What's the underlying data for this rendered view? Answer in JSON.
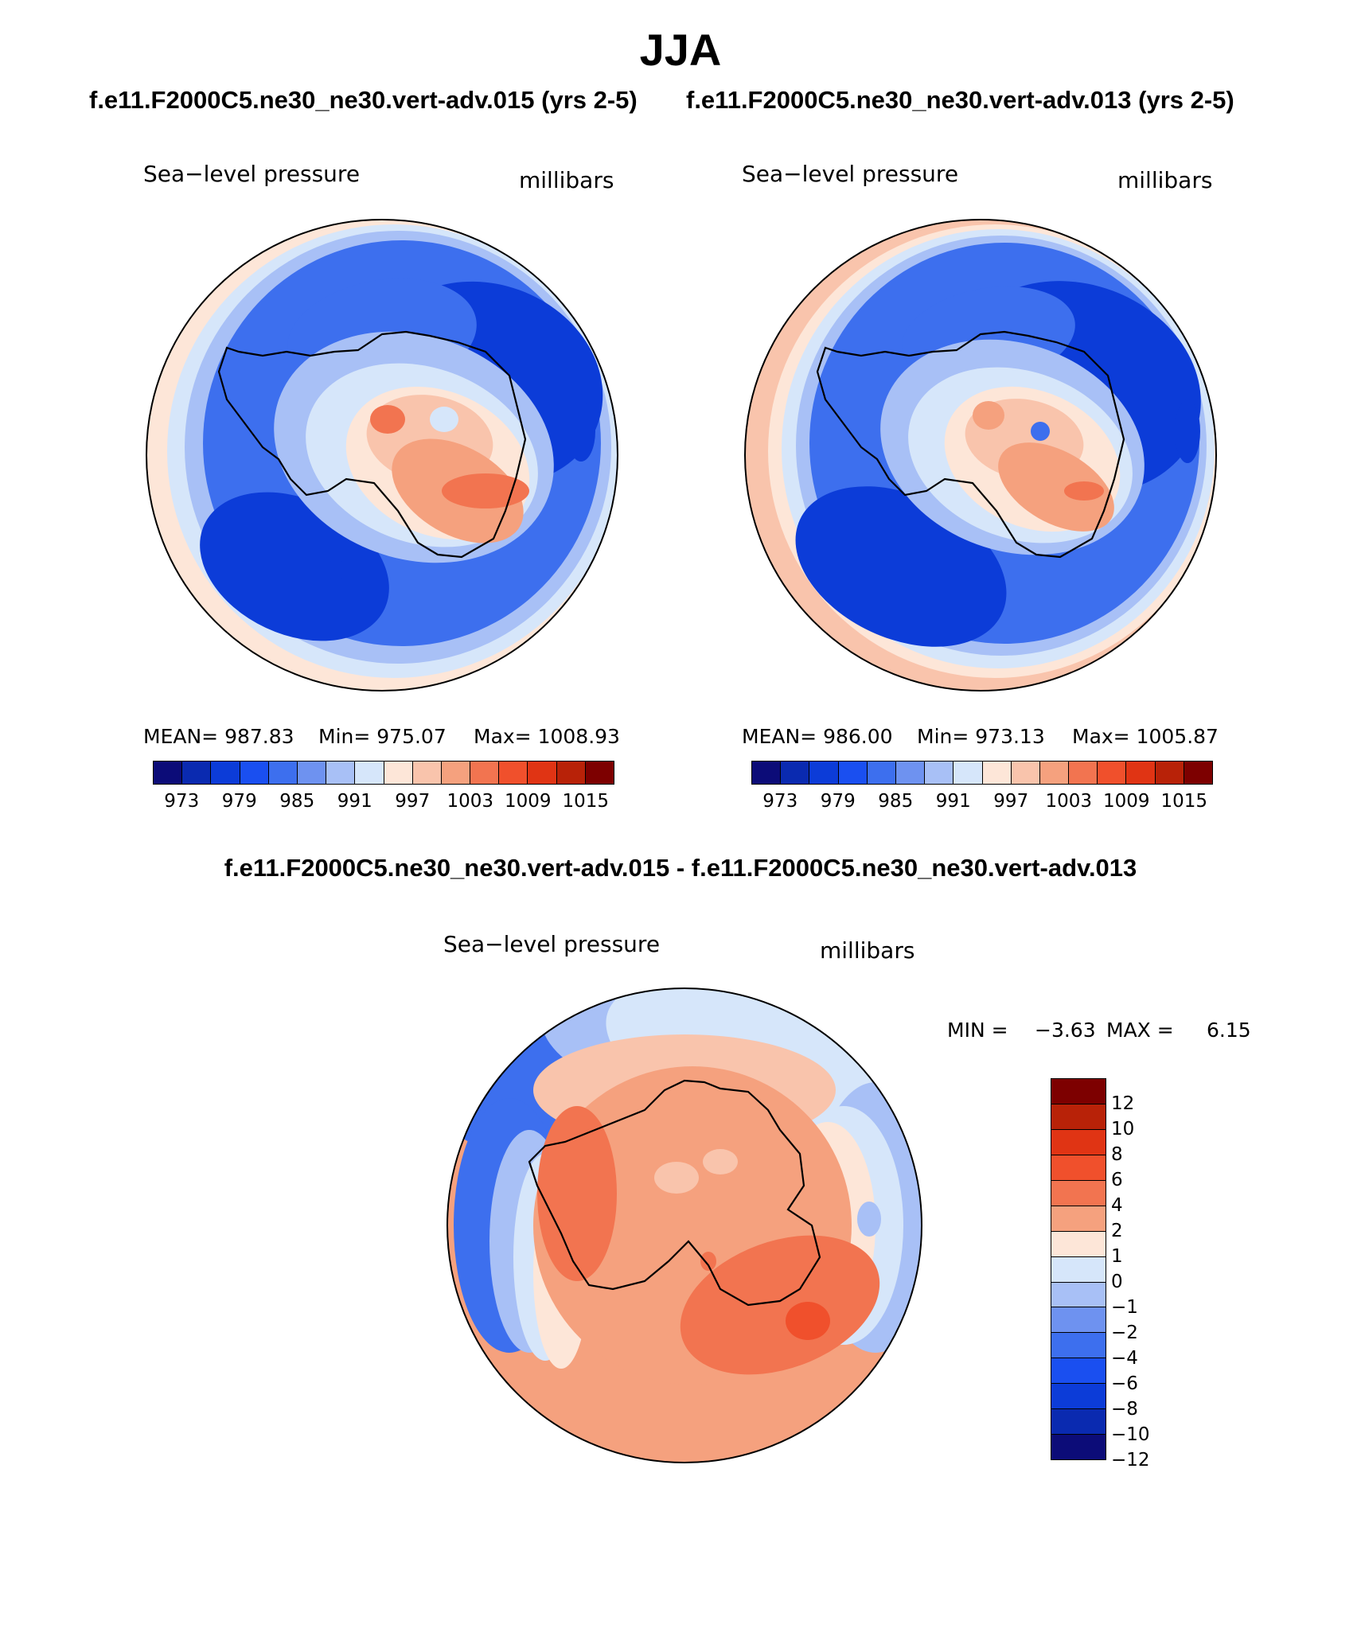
{
  "season_title": "JJA",
  "case1_title": "f.e11.F2000C5.ne30_ne30.vert-adv.015 (yrs 2-5)",
  "case2_title": "f.e11.F2000C5.ne30_ne30.vert-adv.013 (yrs 2-5)",
  "diff_title": "f.e11.F2000C5.ne30_ne30.vert-adv.015 - f.e11.F2000C5.ne30_ne30.vert-adv.013",
  "panels": [
    {
      "variable": "Sea−level pressure",
      "units": "millibars",
      "mean_label": "MEAN= 987.83",
      "min_label": "Min= 975.07",
      "max_label": "Max= 1008.93"
    },
    {
      "variable": "Sea−level pressure",
      "units": "millibars",
      "mean_label": "MEAN= 986.00",
      "min_label": "Min= 973.13",
      "max_label": "Max= 1005.87"
    }
  ],
  "diff_panel": {
    "variable": "Sea−level pressure",
    "units": "millibars",
    "min_label": "MIN =",
    "min_value": "−3.63",
    "max_label": "MAX =",
    "max_value": "6.15"
  },
  "abs_colorbar": {
    "colors": [
      "#0c0c78",
      "#0a2ab0",
      "#0c3cd8",
      "#1a4ff0",
      "#3d6fee",
      "#6e92f0",
      "#a8c0f6",
      "#d6e6fa",
      "#fde6d8",
      "#f9c4ac",
      "#f5a17e",
      "#f27450",
      "#f0502c",
      "#e03414",
      "#b82208",
      "#7d0000"
    ],
    "tick_labels": [
      "973",
      "979",
      "985",
      "991",
      "997",
      "1003",
      "1009",
      "1015"
    ]
  },
  "diff_colorbar": {
    "colors": [
      "#7d0000",
      "#b82208",
      "#e03414",
      "#f0502c",
      "#f27450",
      "#f5a17e",
      "#fde6d8",
      "#d6e6fa",
      "#a8c0f6",
      "#6e92f0",
      "#3d6fee",
      "#1a4ff0",
      "#0c3cd8",
      "#0a2ab0",
      "#0c0c78"
    ],
    "tick_labels": [
      "12",
      "10",
      "8",
      "6",
      "4",
      "2",
      "1",
      "0",
      "−1",
      "−2",
      "−4",
      "−6",
      "−8",
      "−10",
      "−12"
    ]
  },
  "palette": {
    "deep_blue": "#0c3cd8",
    "mid_blue": "#3d6fee",
    "light_blue": "#a8c0f6",
    "pale_blue": "#d6e6fa",
    "pale_red": "#fde6d8",
    "light_red": "#f9c4ac",
    "salmon": "#f5a17e",
    "orange_red": "#f27450",
    "red": "#f0502c"
  }
}
